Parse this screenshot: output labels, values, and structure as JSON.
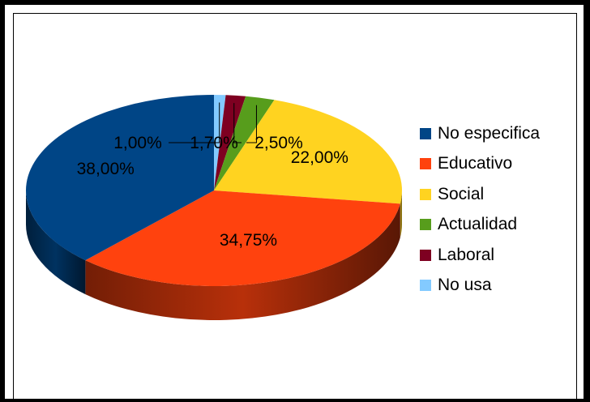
{
  "chart_data": {
    "type": "pie",
    "title": "",
    "categories": [
      "No especifica",
      "Educativo",
      "Social",
      "Actualidad",
      "Laboral",
      "No usa"
    ],
    "values": [
      38.0,
      34.75,
      22.0,
      2.5,
      1.7,
      1.0
    ],
    "data_labels": [
      "38,00%",
      "34,75%",
      "22,00%",
      "2,50%",
      "1,70%",
      "1,00%"
    ],
    "colors": [
      "#004586",
      "#ff420e",
      "#ffd320",
      "#579d1c",
      "#7e0021",
      "#83caff"
    ],
    "legend_position": "right",
    "three_d": true
  },
  "legend": {
    "items": [
      {
        "label": "No especifica",
        "color": "#004586"
      },
      {
        "label": "Educativo",
        "color": "#ff420e"
      },
      {
        "label": "Social",
        "color": "#ffd320"
      },
      {
        "label": "Actualidad",
        "color": "#579d1c"
      },
      {
        "label": "Laboral",
        "color": "#7e0021"
      },
      {
        "label": "No usa",
        "color": "#83caff"
      }
    ]
  }
}
